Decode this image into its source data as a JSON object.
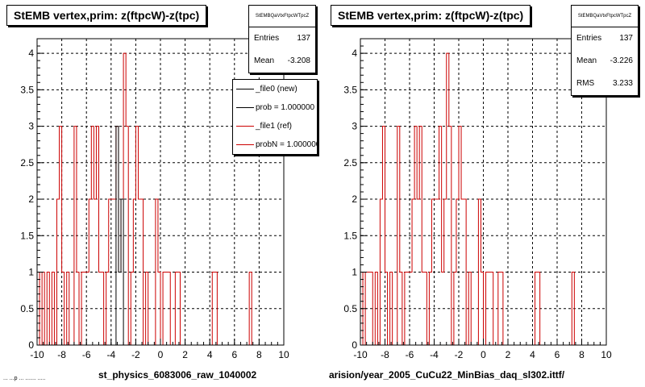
{
  "pad_left": {
    "title": "StEMB  vertex,prim: z(ftpcW)-z(tpc)",
    "stats": {
      "name": "StEMBQaVtxFtpcWTpcZ",
      "rows": [
        {
          "label": "Entries",
          "value": "137"
        },
        {
          "label": "Mean",
          "value": "-3.208"
        }
      ]
    },
    "legend": [
      {
        "label": "_file0 (new)",
        "color": "#000000"
      },
      {
        "label": "prob = 1.000000",
        "color": "#000000"
      },
      {
        "label": "_file1 (ref)",
        "color": "#cc0000"
      },
      {
        "label": "probN = 1.000000",
        "color": "#cc0000"
      }
    ],
    "xcaption": "st_physics_6083006_raw_1040002",
    "footer": "... ...p ... ....... ....."
  },
  "pad_right": {
    "title": "StEMB  vertex,prim: z(ftpcW)-z(tpc)",
    "stats": {
      "name": "StEMBQaVtxFtpcWTpcZ",
      "rows": [
        {
          "label": "Entries",
          "value": "137"
        },
        {
          "label": "Mean",
          "value": "-3.226"
        },
        {
          "label": "RMS",
          "value": "3.233"
        }
      ]
    },
    "xcaption": "arision/year_2005_CuCu22_MinBias_daq_sl302.ittf/"
  },
  "chart_data": [
    {
      "type": "histogram",
      "title": "StEMB  vertex,prim: z(ftpcW)-z(tpc)",
      "xlim": [
        -10,
        10
      ],
      "ylim": [
        0,
        4.2
      ],
      "x_ticks": [
        -10,
        -8,
        -6,
        -4,
        -2,
        0,
        2,
        4,
        6,
        8,
        10
      ],
      "y_ticks": [
        0,
        0.5,
        1,
        1.5,
        2,
        2.5,
        3,
        3.5,
        4
      ],
      "grid": true,
      "bin_width": 0.2,
      "series": [
        {
          "name": "_file1 (ref)",
          "color": "#cc0000",
          "bins": [
            [
              -10,
              1
            ],
            [
              -9.8,
              0
            ],
            [
              -9.6,
              1
            ],
            [
              -9.4,
              0
            ],
            [
              -9.2,
              1
            ],
            [
              -9.0,
              0
            ],
            [
              -8.8,
              1
            ],
            [
              -8.6,
              0
            ],
            [
              -8.4,
              2
            ],
            [
              -8.2,
              3
            ],
            [
              -8.0,
              1
            ],
            [
              -7.8,
              0
            ],
            [
              -7.6,
              1
            ],
            [
              -7.4,
              0
            ],
            [
              -7.2,
              0
            ],
            [
              -7.0,
              3
            ],
            [
              -6.8,
              1
            ],
            [
              -6.6,
              0
            ],
            [
              -6.4,
              1
            ],
            [
              -6.2,
              1
            ],
            [
              -6.0,
              1
            ],
            [
              -5.8,
              2
            ],
            [
              -5.6,
              3
            ],
            [
              -5.4,
              2
            ],
            [
              -5.2,
              3
            ],
            [
              -5.0,
              1
            ],
            [
              -4.8,
              1
            ],
            [
              -4.6,
              0
            ],
            [
              -4.4,
              1
            ],
            [
              -4.2,
              2
            ],
            [
              -4.0,
              2
            ],
            [
              -3.8,
              2
            ],
            [
              -3.6,
              3
            ],
            [
              -3.4,
              1
            ],
            [
              -3.2,
              2
            ],
            [
              -3.0,
              4
            ],
            [
              -2.8,
              3
            ],
            [
              -2.6,
              0
            ],
            [
              -2.4,
              1
            ],
            [
              -2.2,
              2
            ],
            [
              -2.0,
              3
            ],
            [
              -1.8,
              2
            ],
            [
              -1.6,
              2
            ],
            [
              -1.4,
              0
            ],
            [
              -1.2,
              1
            ],
            [
              -1.0,
              0
            ],
            [
              -0.8,
              0
            ],
            [
              -0.6,
              0
            ],
            [
              -0.4,
              2
            ],
            [
              -0.2,
              1
            ],
            [
              0.0,
              0
            ],
            [
              0.2,
              1
            ],
            [
              0.4,
              1
            ],
            [
              0.6,
              1
            ],
            [
              0.8,
              0
            ],
            [
              1.0,
              0
            ],
            [
              1.2,
              1
            ],
            [
              1.4,
              1
            ],
            [
              1.6,
              0
            ],
            [
              1.8,
              0
            ],
            [
              2.0,
              0
            ],
            [
              2.2,
              0
            ],
            [
              2.4,
              0
            ],
            [
              2.6,
              0
            ],
            [
              2.8,
              0
            ],
            [
              3.0,
              0
            ],
            [
              3.2,
              0
            ],
            [
              3.4,
              0
            ],
            [
              3.6,
              0
            ],
            [
              3.8,
              0
            ],
            [
              4.0,
              0
            ],
            [
              4.2,
              1
            ],
            [
              4.4,
              1
            ],
            [
              4.6,
              0
            ],
            [
              4.8,
              0
            ],
            [
              5.0,
              0
            ],
            [
              5.2,
              0
            ],
            [
              5.4,
              0
            ],
            [
              5.6,
              0
            ],
            [
              5.8,
              0
            ],
            [
              6.0,
              0
            ],
            [
              6.2,
              0
            ],
            [
              6.4,
              0
            ],
            [
              6.6,
              0
            ],
            [
              6.8,
              0
            ],
            [
              7.0,
              0
            ],
            [
              7.2,
              1
            ],
            [
              7.4,
              0
            ]
          ]
        },
        {
          "name": "_file0 (new)",
          "color": "#000000",
          "bins": [
            [
              -3.6,
              3
            ],
            [
              -3.4,
              1
            ],
            [
              -3.2,
              2
            ]
          ]
        }
      ]
    },
    {
      "type": "histogram",
      "title": "StEMB  vertex,prim: z(ftpcW)-z(tpc)",
      "xlim": [
        -10,
        10
      ],
      "ylim": [
        0,
        4.2
      ],
      "x_ticks": [
        -10,
        -8,
        -6,
        -4,
        -2,
        0,
        2,
        4,
        6,
        8,
        10
      ],
      "y_ticks": [
        0,
        0.5,
        1,
        1.5,
        2,
        2.5,
        3,
        3.5,
        4
      ],
      "grid": true,
      "bin_width": 0.2,
      "series": [
        {
          "name": "",
          "color": "#cc0000",
          "bins": [
            [
              -10,
              1
            ],
            [
              -9.8,
              0
            ],
            [
              -9.6,
              1
            ],
            [
              -9.4,
              1
            ],
            [
              -9.2,
              1
            ],
            [
              -9.0,
              0
            ],
            [
              -8.8,
              1
            ],
            [
              -8.6,
              0
            ],
            [
              -8.4,
              2
            ],
            [
              -8.2,
              3
            ],
            [
              -8.0,
              1
            ],
            [
              -7.8,
              0
            ],
            [
              -7.6,
              1
            ],
            [
              -7.4,
              0
            ],
            [
              -7.2,
              0
            ],
            [
              -7.0,
              3
            ],
            [
              -6.8,
              1
            ],
            [
              -6.6,
              0
            ],
            [
              -6.4,
              1
            ],
            [
              -6.2,
              1
            ],
            [
              -6.0,
              1
            ],
            [
              -5.8,
              2
            ],
            [
              -5.6,
              3
            ],
            [
              -5.4,
              2
            ],
            [
              -5.2,
              3
            ],
            [
              -5.0,
              1
            ],
            [
              -4.8,
              1
            ],
            [
              -4.6,
              0
            ],
            [
              -4.4,
              1
            ],
            [
              -4.2,
              2
            ],
            [
              -4.0,
              2
            ],
            [
              -3.8,
              2
            ],
            [
              -3.6,
              3
            ],
            [
              -3.4,
              1
            ],
            [
              -3.2,
              2
            ],
            [
              -3.0,
              4
            ],
            [
              -2.8,
              3
            ],
            [
              -2.6,
              0
            ],
            [
              -2.4,
              1
            ],
            [
              -2.2,
              2
            ],
            [
              -2.0,
              3
            ],
            [
              -1.8,
              2
            ],
            [
              -1.6,
              2
            ],
            [
              -1.4,
              0
            ],
            [
              -1.2,
              1
            ],
            [
              -1.0,
              0
            ],
            [
              -0.8,
              0
            ],
            [
              -0.6,
              0
            ],
            [
              -0.4,
              2
            ],
            [
              -0.2,
              1
            ],
            [
              0.0,
              0
            ],
            [
              0.2,
              1
            ],
            [
              0.4,
              1
            ],
            [
              0.6,
              1
            ],
            [
              0.8,
              0
            ],
            [
              1.0,
              0
            ],
            [
              1.2,
              1
            ],
            [
              1.4,
              1
            ],
            [
              1.6,
              0
            ],
            [
              1.8,
              0
            ],
            [
              2.0,
              0
            ],
            [
              2.2,
              0
            ],
            [
              2.4,
              0
            ],
            [
              2.6,
              0
            ],
            [
              2.8,
              0
            ],
            [
              3.0,
              0
            ],
            [
              3.2,
              0
            ],
            [
              3.4,
              0
            ],
            [
              3.6,
              0
            ],
            [
              3.8,
              0
            ],
            [
              4.0,
              0
            ],
            [
              4.2,
              1
            ],
            [
              4.4,
              1
            ],
            [
              4.6,
              0
            ],
            [
              4.8,
              0
            ],
            [
              5.0,
              0
            ],
            [
              5.2,
              0
            ],
            [
              5.4,
              0
            ],
            [
              5.6,
              0
            ],
            [
              5.8,
              0
            ],
            [
              6.0,
              0
            ],
            [
              6.2,
              0
            ],
            [
              6.4,
              0
            ],
            [
              6.6,
              0
            ],
            [
              6.8,
              0
            ],
            [
              7.0,
              0
            ],
            [
              7.2,
              1
            ],
            [
              7.4,
              0
            ]
          ]
        }
      ]
    }
  ]
}
